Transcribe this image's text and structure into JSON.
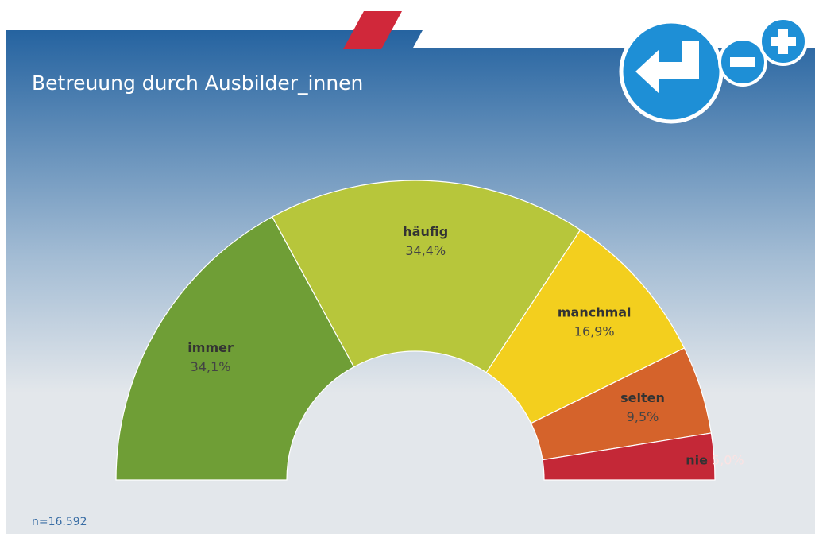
{
  "chart_data": {
    "type": "semi-donut",
    "title": "Betreuung durch Ausbilder_innen",
    "note": "n=16.592",
    "categories": [
      "immer",
      "häufig",
      "manchmal",
      "selten",
      "nie"
    ],
    "values": [
      34.1,
      34.4,
      16.9,
      9.5,
      5.0
    ],
    "value_labels": [
      "34,1%",
      "34,4%",
      "16,9%",
      "9,5%",
      "5,0%"
    ],
    "colors": [
      "#6f9e36",
      "#b7c63b",
      "#f3cf1e",
      "#d5632b",
      "#c42837"
    ]
  }
}
